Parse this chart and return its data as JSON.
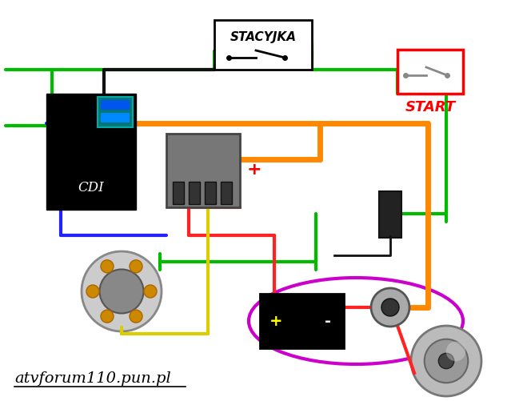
{
  "bg_color": "#ffffff",
  "title_text": "atvforum110.pun.pl",
  "stacyjka_label": "STACYJKA",
  "cdi_label": "CDI",
  "start_label": "START",
  "plus_label": "+",
  "green": "#00bb00",
  "orange": "#ff8800",
  "red": "#ff2222",
  "blue": "#2222ff",
  "yellow": "#ddcc00",
  "black": "#111111",
  "purple": "#cc00cc",
  "orange_lw": 5,
  "wire_lw": 3
}
